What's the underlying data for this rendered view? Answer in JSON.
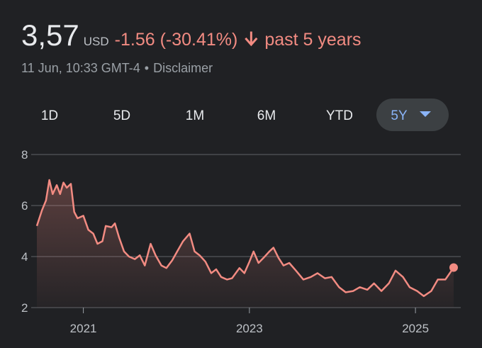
{
  "header": {
    "price": "3,57",
    "currency": "USD",
    "change": "-1.56 (-30.41%)",
    "period": "past 5 years",
    "timestamp": "11 Jun, 10:33 GMT-4",
    "separator": "•",
    "disclaimer": "Disclaimer"
  },
  "tabs": [
    "1D",
    "5D",
    "1M",
    "6M",
    "YTD",
    "5Y"
  ],
  "active_tab": "5Y",
  "chart_data": {
    "type": "line",
    "color": "#f28b82",
    "x": [
      2020.44,
      2020.5,
      2020.55,
      2020.59,
      2020.63,
      2020.68,
      2020.72,
      2020.76,
      2020.8,
      2020.85,
      2020.89,
      2020.93,
      2021.0,
      2021.06,
      2021.12,
      2021.17,
      2021.23,
      2021.27,
      2021.34,
      2021.38,
      2021.43,
      2021.49,
      2021.55,
      2021.62,
      2021.68,
      2021.74,
      2021.81,
      2021.87,
      2021.94,
      2022.0,
      2022.07,
      2022.13,
      2022.2,
      2022.28,
      2022.34,
      2022.4,
      2022.47,
      2022.54,
      2022.6,
      2022.66,
      2022.73,
      2022.79,
      2022.88,
      2022.94,
      2023.0,
      2023.05,
      2023.11,
      2023.17,
      2023.24,
      2023.29,
      2023.35,
      2023.41,
      2023.48,
      2023.56,
      2023.65,
      2023.74,
      2023.82,
      2023.91,
      2023.99,
      2024.08,
      2024.16,
      2024.25,
      2024.33,
      2024.42,
      2024.5,
      2024.59,
      2024.68,
      2024.76,
      2024.85,
      2024.93,
      2025.02,
      2025.1,
      2025.19,
      2025.27,
      2025.36,
      2025.46
    ],
    "values": [
      5.2,
      5.8,
      6.2,
      7.0,
      6.45,
      6.8,
      6.45,
      6.9,
      6.7,
      6.85,
      5.75,
      5.5,
      5.6,
      5.05,
      4.9,
      4.5,
      4.6,
      5.2,
      5.15,
      5.3,
      4.75,
      4.2,
      4.0,
      3.9,
      4.05,
      3.65,
      4.5,
      4.05,
      3.65,
      3.55,
      3.85,
      4.2,
      4.6,
      4.9,
      4.2,
      4.05,
      3.8,
      3.35,
      3.5,
      3.2,
      3.1,
      3.15,
      3.55,
      3.35,
      3.8,
      4.2,
      3.75,
      3.95,
      4.2,
      4.35,
      3.95,
      3.65,
      3.75,
      3.45,
      3.1,
      3.2,
      3.35,
      3.15,
      3.2,
      2.8,
      2.6,
      2.65,
      2.8,
      2.7,
      2.95,
      2.65,
      2.95,
      3.45,
      3.2,
      2.8,
      2.65,
      2.45,
      2.65,
      3.1,
      3.1,
      3.57
    ],
    "xlim": [
      2020.44,
      2025.46
    ],
    "xticks": [
      2021,
      2023,
      2025
    ],
    "ylim": [
      2,
      8
    ],
    "yticks": [
      2,
      4,
      6,
      8
    ],
    "grid": true
  }
}
